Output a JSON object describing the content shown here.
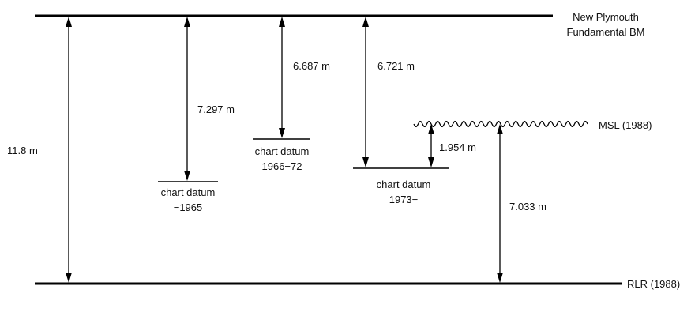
{
  "reference_levels": {
    "top_benchmark": [
      "New Plymouth",
      "Fundamental BM"
    ],
    "msl": "MSL (1988)",
    "rlr": "RLR (1988)"
  },
  "chart_datums": [
    {
      "label": [
        "chart datum",
        "−1965"
      ]
    },
    {
      "label": [
        "chart datum",
        "1966−72"
      ]
    },
    {
      "label": [
        "chart datum",
        "1973−"
      ]
    }
  ],
  "measurements": {
    "bm_to_rlr": "11.8 m",
    "bm_to_cd_1965": "7.297 m",
    "bm_to_cd_1966_72": "6.687 m",
    "bm_to_cd_1973": "6.721 m",
    "msl_to_cd_1973": "1.954 m",
    "msl_to_rlr": "7.033 m"
  },
  "colors": {
    "ink": "#000000",
    "background": "#ffffff"
  }
}
